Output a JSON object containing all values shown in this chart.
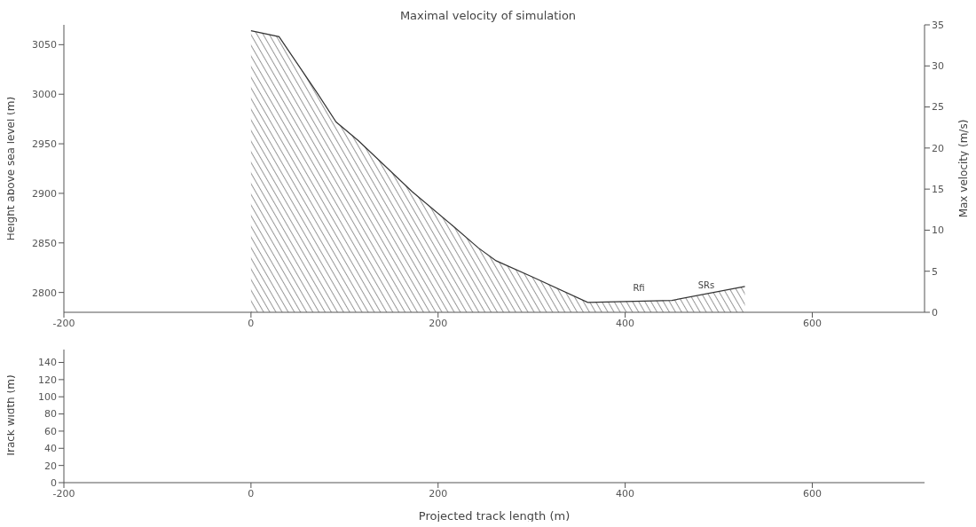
{
  "chart_data": [
    {
      "type": "area",
      "title": "Maximal velocity of simulation",
      "ylabel": "Height above sea level (m)",
      "y2label": "Max velocity (m/s)",
      "xlim": [
        -200,
        720
      ],
      "xticks": [
        -200,
        0,
        200,
        400,
        600
      ],
      "ylim": [
        2780,
        3070
      ],
      "yticks": [
        2800,
        2850,
        2900,
        2950,
        3000,
        3050
      ],
      "y2lim": [
        0,
        35
      ],
      "y2ticks": [
        0,
        5,
        10,
        15,
        20,
        25,
        30,
        35
      ],
      "grid": false,
      "legend": false,
      "series": [
        {
          "color": "#333333",
          "x": [
            0,
            30,
            71,
            91,
            115,
            172,
            216,
            243,
            262,
            300,
            360,
            450,
            528
          ],
          "values": [
            3064,
            3058,
            3001,
            2972,
            2953,
            2902,
            2867,
            2845,
            2832,
            2816,
            2790,
            2792,
            2806
          ]
        }
      ],
      "annotations": [
        "Rfi",
        "SRs"
      ]
    },
    {
      "type": "area",
      "xlabel": "Projected track length (m)",
      "ylabel": "Track width (m)",
      "xlim": [
        -200,
        720
      ],
      "xticks": [
        -200,
        0,
        200,
        400,
        600
      ],
      "ylim": [
        0,
        155
      ],
      "yticks": [
        0,
        20,
        40,
        60,
        80,
        100,
        120,
        140
      ],
      "grid": false,
      "legend": false
    }
  ]
}
